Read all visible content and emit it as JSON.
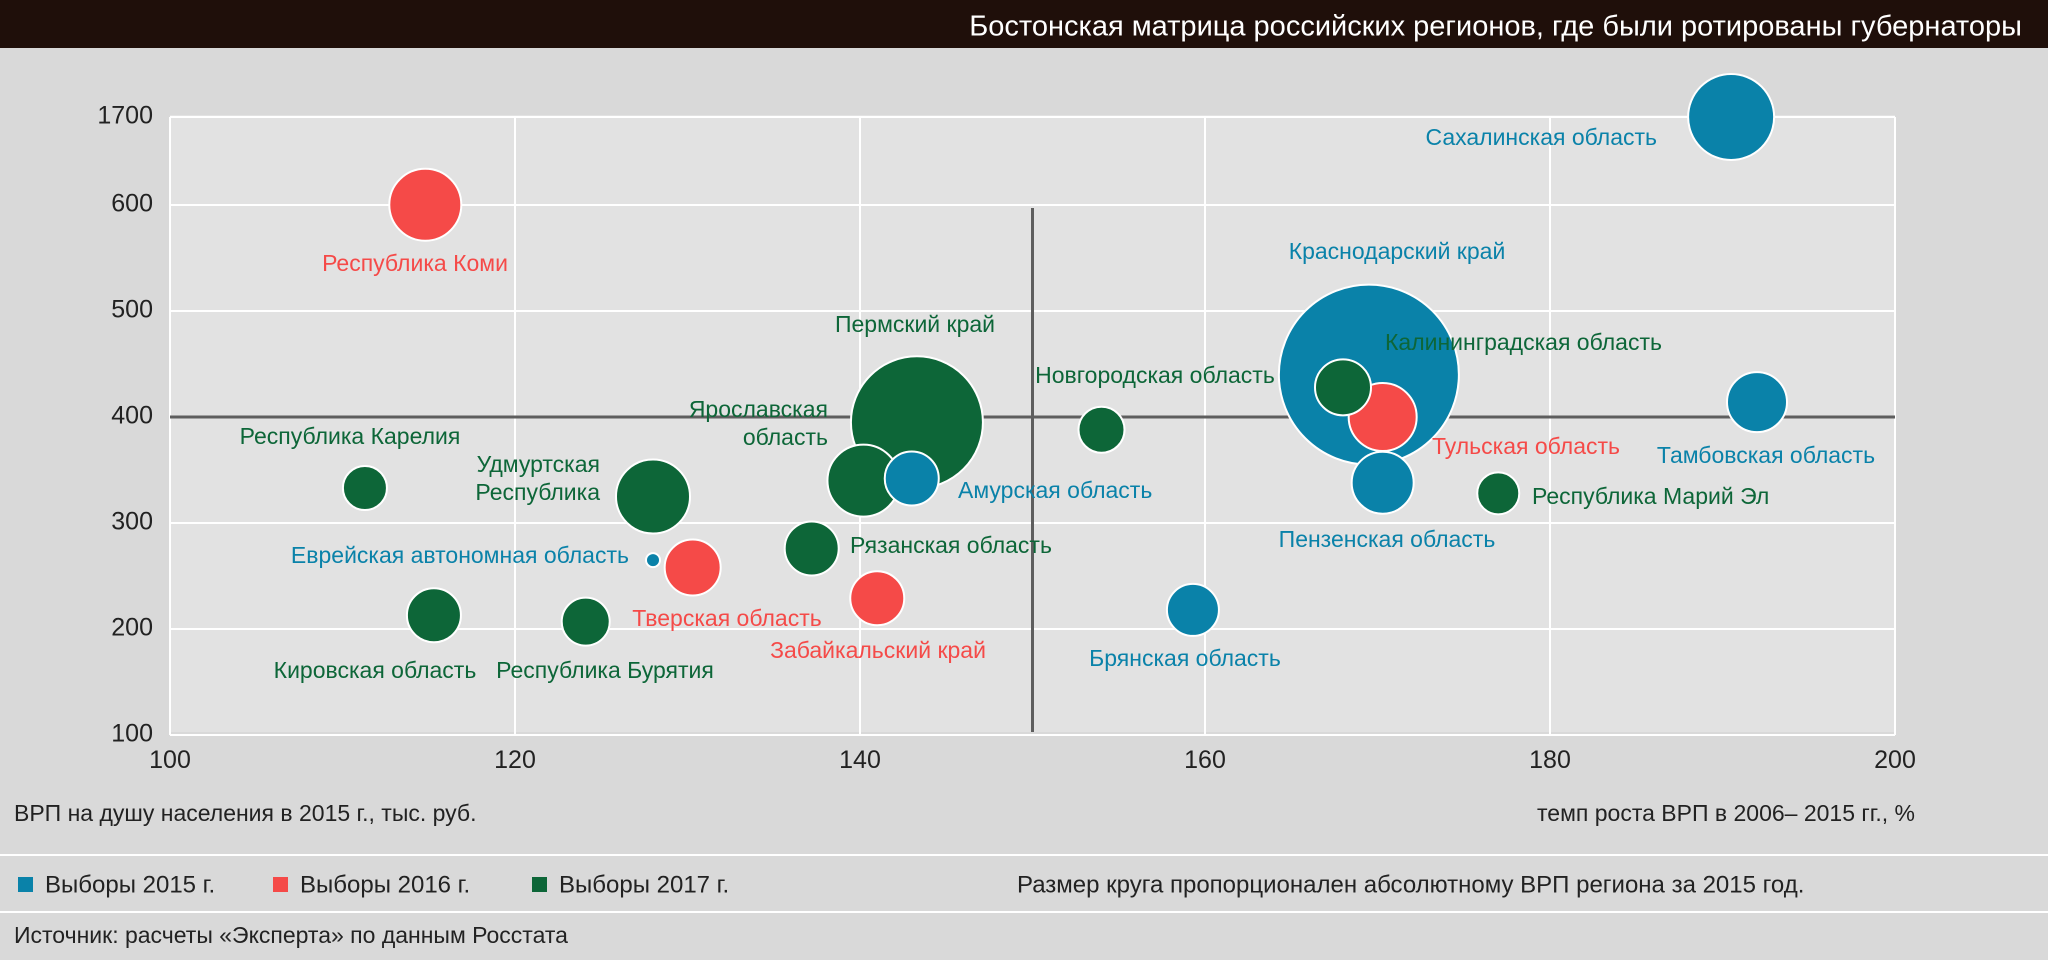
{
  "header": {
    "title": "Бостонская матрица российских регионов, где были ротированы губернаторы"
  },
  "colors": {
    "elections_2015": "#0a82a9",
    "elections_2016": "#f54a48",
    "elections_2017": "#0d6638",
    "header_bg": "#1f0f0a"
  },
  "legend": {
    "items": [
      {
        "label": "Выборы 2015 г.",
        "color_key": "elections_2015"
      },
      {
        "label": "Выборы 2016 г.",
        "color_key": "elections_2016"
      },
      {
        "label": "Выборы 2017 г.",
        "color_key": "elections_2017"
      }
    ],
    "size_note": "Размер круга пропорционален абсолютному ВРП региона за 2015 год."
  },
  "footer": {
    "source": "Источник: расчеты «Эксперта» по данным Росстата"
  },
  "chart_data": {
    "type": "scatter",
    "title": "Бостонская матрица российских регионов, где были ротированы губернаторы",
    "xlabel": "темп роста ВРП в 2006– 2015 гг., %",
    "ylabel": "ВРП на душу населения в 2015 г., тыс. руб.",
    "xlim": [
      100,
      200
    ],
    "x_ticks": [
      100,
      120,
      140,
      160,
      180,
      200
    ],
    "y_ticks": [
      100,
      200,
      300,
      400,
      500,
      600,
      1700
    ],
    "y_scale": "broken axis: 100–600 linear, break to 1700",
    "divider_lines": {
      "x": 150,
      "y": 400
    },
    "grid": true,
    "points": [
      {
        "name": "Сахалинская область",
        "x": 190.5,
        "y": 1700,
        "group": "elections_2015",
        "r": 43
      },
      {
        "name": "Республика Коми",
        "x": 114.8,
        "y": 603,
        "group": "elections_2016",
        "r": 36
      },
      {
        "name": "Краснодарский край",
        "x": 169.5,
        "y": 440,
        "group": "elections_2015",
        "r": 90
      },
      {
        "name": "Калининградская область",
        "x": 168,
        "y": 428,
        "group": "elections_2017",
        "r": 28
      },
      {
        "name": "Тульская область",
        "x": 170.3,
        "y": 400,
        "group": "elections_2016",
        "r": 34
      },
      {
        "name": "Пензенская область",
        "x": 170.3,
        "y": 338,
        "group": "elections_2015",
        "r": 31
      },
      {
        "name": "Тамбовская область",
        "x": 192,
        "y": 414,
        "group": "elections_2015",
        "r": 30
      },
      {
        "name": "Республика Марий Эл",
        "x": 177,
        "y": 328,
        "group": "elections_2017",
        "r": 21
      },
      {
        "name": "Новгородская область",
        "x": 154,
        "y": 388,
        "group": "elections_2017",
        "r": 23
      },
      {
        "name": "Брянская область",
        "x": 159.3,
        "y": 218,
        "group": "elections_2015",
        "r": 26
      },
      {
        "name": "Пермский край",
        "x": 143.3,
        "y": 395,
        "group": "elections_2017",
        "r": 66
      },
      {
        "name": "Ярославская область",
        "x": 140.2,
        "y": 340,
        "group": "elections_2017",
        "r": 36
      },
      {
        "name": "Амурская область",
        "x": 143,
        "y": 342,
        "group": "elections_2015",
        "r": 27
      },
      {
        "name": "Рязанская область",
        "x": 137.2,
        "y": 276,
        "group": "elections_2017",
        "r": 27
      },
      {
        "name": "Забайкальский край",
        "x": 141,
        "y": 229,
        "group": "elections_2016",
        "r": 27
      },
      {
        "name": "Удмуртская Республика",
        "x": 128,
        "y": 325,
        "group": "elections_2017",
        "r": 37
      },
      {
        "name": "Тверская область",
        "x": 130.3,
        "y": 258,
        "group": "elections_2016",
        "r": 28
      },
      {
        "name": "Еврейская автономная область",
        "x": 128,
        "y": 265,
        "group": "elections_2015",
        "r": 7
      },
      {
        "name": "Республика Карелия",
        "x": 111.3,
        "y": 333,
        "group": "elections_2017",
        "r": 22
      },
      {
        "name": "Кировская область",
        "x": 115.3,
        "y": 213,
        "group": "elections_2017",
        "r": 27
      },
      {
        "name": "Республика Бурятия",
        "x": 124.1,
        "y": 207,
        "group": "elections_2017",
        "r": 24
      }
    ]
  }
}
